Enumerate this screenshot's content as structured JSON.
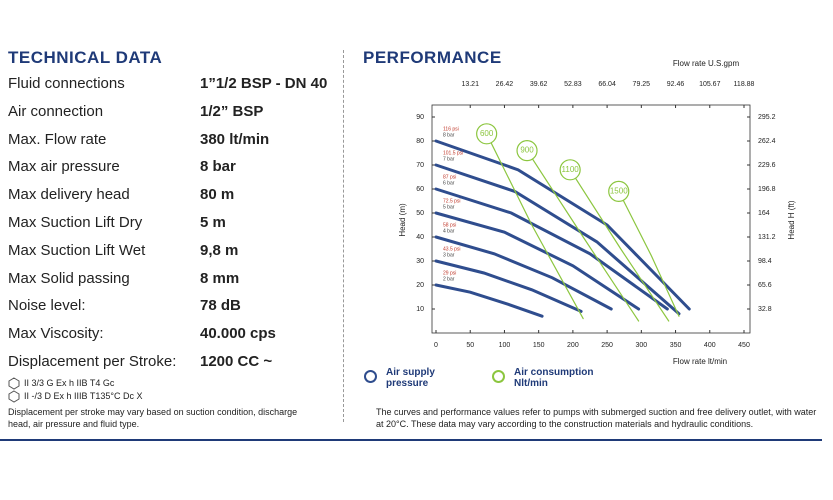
{
  "technical": {
    "title": "TECHNICAL DATA",
    "rows": [
      [
        "Fluid connections",
        "1”1/2 BSP - DN 40"
      ],
      [
        "Air connection",
        "1/2” BSP"
      ],
      [
        "Max. Flow rate",
        "380 lt/min"
      ],
      [
        "Max air pressure",
        "8 bar"
      ],
      [
        "Max delivery head",
        "80 m"
      ],
      [
        "Max Suction Lift Dry",
        "5 m"
      ],
      [
        "Max Suction Lift Wet",
        "9,8 m"
      ],
      [
        "Max Solid passing",
        "8 mm"
      ],
      [
        "Noise level:",
        "78 dB"
      ],
      [
        "Max Viscosity:",
        "40.000 cps"
      ],
      [
        "Displacement per Stroke:",
        "1200 CC ~"
      ]
    ],
    "atex": [
      "II 3/3 G Ex h IIB T4 Gc",
      "II -/3 D Ex h IIIB T135°C Dc X"
    ],
    "note": "Displacement per stroke may vary based on suction condition, discharge head, air pressure and fluid type."
  },
  "performance": {
    "title": "PERFORMANCE",
    "note": "The curves and performance values refer to pumps with submerged suction and free delivery outlet, with water at 20°C. These data may vary according to the construction materials and hydraulic conditions."
  },
  "chart_data": {
    "type": "line",
    "x_label": "Flow rate  lt/min",
    "x2_label": "Flow rate U.S.gpm",
    "y_label": "Head (m)",
    "y2_label": "Head H (ft)",
    "xlim": [
      0,
      450
    ],
    "xticks": [
      0,
      50,
      100,
      150,
      200,
      250,
      300,
      350,
      400,
      450
    ],
    "x2lim": [
      0,
      118.88
    ],
    "x2ticks": [
      13.21,
      26.42,
      39.62,
      52.83,
      66.04,
      79.25,
      92.46,
      105.67,
      118.88
    ],
    "ylim": [
      0,
      95
    ],
    "yticks": [
      10,
      20,
      30,
      40,
      50,
      60,
      70,
      80,
      90
    ],
    "y2lim": [
      0,
      311.6
    ],
    "y2ticks": [
      32.8,
      65.6,
      98.4,
      131.2,
      164,
      196.8,
      229.6,
      262.4,
      295.2
    ],
    "legend": [
      {
        "label": "Air supply pressure",
        "color": "#2f4d8e"
      },
      {
        "label": "Air consumption Nlt/min",
        "color": "#8cc63f"
      }
    ],
    "series": [
      {
        "name": "8 bar",
        "psi": "116 psi",
        "color": "#2f4d8e",
        "x": [
          0,
          120,
          250,
          370
        ],
        "values": [
          80,
          68,
          45,
          10
        ]
      },
      {
        "name": "7 bar",
        "psi": "101.5 psi",
        "color": "#2f4d8e",
        "x": [
          0,
          115,
          235,
          355
        ],
        "values": [
          70,
          59,
          38,
          8
        ]
      },
      {
        "name": "6 bar",
        "psi": "87 psi",
        "color": "#2f4d8e",
        "x": [
          0,
          110,
          225,
          338
        ],
        "values": [
          60,
          50,
          33,
          10
        ]
      },
      {
        "name": "5 bar",
        "psi": "72.5 psi",
        "color": "#2f4d8e",
        "x": [
          0,
          100,
          200,
          296
        ],
        "values": [
          50,
          42,
          28,
          10
        ]
      },
      {
        "name": "4 bar",
        "psi": "58 psi",
        "color": "#2f4d8e",
        "x": [
          0,
          85,
          170,
          256
        ],
        "values": [
          40,
          33,
          23,
          10
        ]
      },
      {
        "name": "3 bar",
        "psi": "43.5 psi",
        "color": "#2f4d8e",
        "x": [
          0,
          70,
          140,
          212
        ],
        "values": [
          30,
          25,
          18,
          9
        ]
      },
      {
        "name": "2 bar",
        "psi": "29 psi",
        "color": "#2f4d8e",
        "x": [
          0,
          50,
          105,
          155
        ],
        "values": [
          20,
          17,
          12,
          7
        ]
      },
      {
        "name": "600",
        "color": "#8cc63f",
        "x": [
          74,
          140,
          215
        ],
        "values": [
          83,
          45,
          6
        ]
      },
      {
        "name": "900",
        "color": "#8cc63f",
        "x": [
          133,
          215,
          296
        ],
        "values": [
          76,
          40,
          5
        ]
      },
      {
        "name": "1100",
        "color": "#8cc63f",
        "x": [
          196,
          270,
          340
        ],
        "values": [
          68,
          35,
          5
        ]
      },
      {
        "name": "1500",
        "color": "#8cc63f",
        "x": [
          267,
          315,
          355
        ],
        "values": [
          59,
          32,
          7
        ]
      }
    ]
  }
}
